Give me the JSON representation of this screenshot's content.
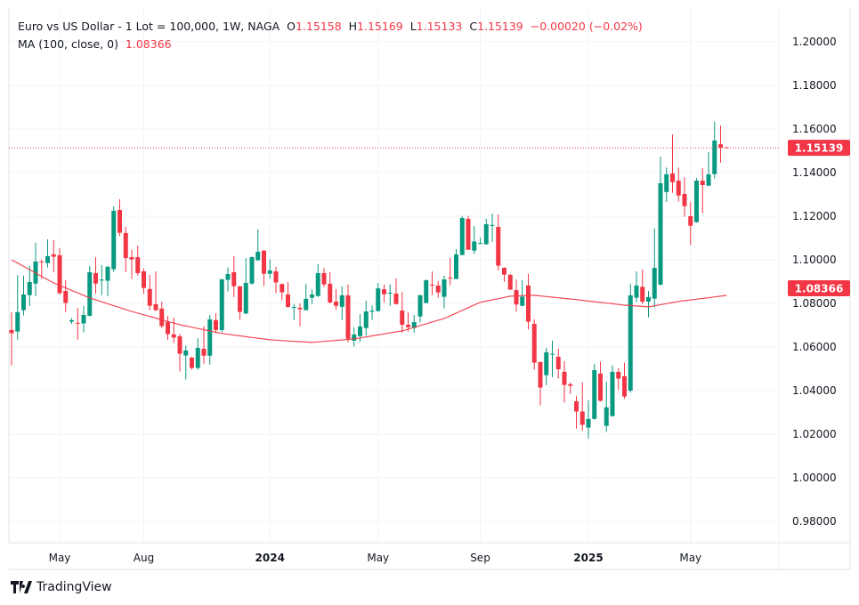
{
  "header": {
    "symbol": "Euro vs US Dollar - 1 Lot = 100,000, 1W, NAGA",
    "o_label": "O",
    "o": "1.15158",
    "h_label": "H",
    "h": "1.15169",
    "l_label": "L",
    "l": "1.15133",
    "c_label": "C",
    "c": "1.15139",
    "change": "−0.00020 (−0.02%)",
    "ma_label": "MA (100, close, 0)",
    "ma_value": "1.08366"
  },
  "branding": {
    "logo_text": "TradingView"
  },
  "colors": {
    "up": "#089981",
    "down": "#f23645",
    "ma": "#f23645",
    "grid": "#f0f3fa",
    "text": "#131722"
  },
  "chart_data": {
    "type": "candlestick",
    "timeframe": "1W",
    "ylim": [
      0.97,
      1.21
    ],
    "y_ticks": [
      "1.20000",
      "1.18000",
      "1.16000",
      "1.14000",
      "1.12000",
      "1.10000",
      "1.08000",
      "1.06000",
      "1.04000",
      "1.02000",
      "1.00000",
      "0.98000"
    ],
    "x_ticks": [
      {
        "label": "May",
        "index": 8,
        "bold": false
      },
      {
        "label": "Aug",
        "index": 22,
        "bold": false
      },
      {
        "label": "2024",
        "index": 43,
        "bold": true
      },
      {
        "label": "May",
        "index": 61,
        "bold": false
      },
      {
        "label": "Sep",
        "index": 78,
        "bold": false
      },
      {
        "label": "2025",
        "index": 96,
        "bold": true
      },
      {
        "label": "May",
        "index": 113,
        "bold": false
      }
    ],
    "grid": true,
    "price_labels": [
      {
        "value": "1.15139",
        "price": 1.15139,
        "color": "#f23645",
        "line": "dotted"
      },
      {
        "value": "1.08366",
        "price": 1.08366,
        "color": "#f23645",
        "line": "none"
      }
    ],
    "ohlc_columns": [
      "open",
      "high",
      "low",
      "close"
    ],
    "candles": [
      [
        1.0678,
        1.076,
        1.0516,
        1.0663
      ],
      [
        1.0671,
        1.093,
        1.0633,
        1.076
      ],
      [
        1.0769,
        1.0927,
        1.0745,
        1.0841
      ],
      [
        1.0838,
        1.0972,
        1.0788,
        1.0898
      ],
      [
        1.0891,
        1.1078,
        1.0834,
        1.0992
      ],
      [
        1.0992,
        1.1002,
        1.0913,
        1.0988
      ],
      [
        1.0985,
        1.1094,
        1.0965,
        1.1017
      ],
      [
        1.1025,
        1.109,
        1.0944,
        1.1014
      ],
      [
        1.1021,
        1.1053,
        1.084,
        1.0847
      ],
      [
        1.0857,
        1.0906,
        1.0761,
        1.0802
      ],
      [
        1.0716,
        1.0732,
        1.0705,
        1.0723
      ],
      [
        1.0711,
        1.078,
        1.0634,
        1.0708
      ],
      [
        1.0708,
        1.0788,
        1.0667,
        1.0747
      ],
      [
        1.0743,
        1.0972,
        1.074,
        1.0943
      ],
      [
        1.0939,
        1.1012,
        1.0845,
        1.0891
      ],
      [
        1.0905,
        1.0976,
        1.0838,
        1.0909
      ],
      [
        1.0904,
        1.0972,
        1.0834,
        1.0968
      ],
      [
        1.0957,
        1.1245,
        1.0944,
        1.1225
      ],
      [
        1.1229,
        1.1278,
        1.1108,
        1.1124
      ],
      [
        1.1123,
        1.1151,
        1.0943,
        1.1008
      ],
      [
        1.1012,
        1.1045,
        1.0912,
        1.1002
      ],
      [
        1.1012,
        1.1066,
        1.0927,
        1.0939
      ],
      [
        1.0947,
        1.0961,
        1.0845,
        1.0871
      ],
      [
        1.0866,
        1.0931,
        1.0769,
        1.0789
      ],
      [
        1.0796,
        1.0947,
        1.0765,
        1.0769
      ],
      [
        1.0776,
        1.0808,
        1.0687,
        1.0696
      ],
      [
        1.0715,
        1.0743,
        1.0633,
        1.0659
      ],
      [
        1.0658,
        1.0735,
        1.0618,
        1.0643
      ],
      [
        1.0649,
        1.066,
        1.0488,
        1.0569
      ],
      [
        1.0561,
        1.0607,
        1.0451,
        1.0584
      ],
      [
        1.0551,
        1.0555,
        1.0496,
        1.0504
      ],
      [
        1.0504,
        1.064,
        1.0496,
        1.0596
      ],
      [
        1.0592,
        1.0696,
        1.0523,
        1.056
      ],
      [
        1.056,
        1.0747,
        1.0519,
        1.0727
      ],
      [
        1.0723,
        1.0755,
        1.0664,
        1.0678
      ],
      [
        1.0678,
        1.0913,
        1.0668,
        1.091
      ],
      [
        1.0908,
        1.0965,
        1.0855,
        1.0935
      ],
      [
        1.0943,
        1.1017,
        1.0829,
        1.0879
      ],
      [
        1.0878,
        1.088,
        1.0724,
        1.0761
      ],
      [
        1.0754,
        1.1008,
        1.075,
        1.0894
      ],
      [
        1.0891,
        1.1015,
        1.0885,
        1.1012
      ],
      [
        1.0998,
        1.1139,
        1.0995,
        1.1037
      ],
      [
        1.1042,
        1.1045,
        1.0879,
        1.0936
      ],
      [
        1.0936,
        1.1002,
        1.0913,
        1.0951
      ],
      [
        1.0947,
        1.0968,
        1.0847,
        1.0896
      ],
      [
        1.0889,
        1.089,
        1.0814,
        1.0851
      ],
      [
        1.0841,
        1.0898,
        1.078,
        1.0784
      ],
      [
        1.0781,
        1.0797,
        1.0724,
        1.0784
      ],
      [
        1.078,
        1.0799,
        1.0695,
        1.0773
      ],
      [
        1.0769,
        1.089,
        1.0769,
        1.0821
      ],
      [
        1.0826,
        1.0864,
        1.0797,
        1.0841
      ],
      [
        1.0834,
        1.098,
        1.083,
        1.0939
      ],
      [
        1.0939,
        1.0963,
        1.0875,
        1.0887
      ],
      [
        1.089,
        1.0943,
        1.08,
        1.0804
      ],
      [
        1.0808,
        1.0865,
        1.077,
        1.0789
      ],
      [
        1.0784,
        1.0878,
        1.0724,
        1.0837
      ],
      [
        1.0837,
        1.0886,
        1.0621,
        1.0638
      ],
      [
        1.0629,
        1.069,
        1.0602,
        1.0657
      ],
      [
        1.065,
        1.0751,
        1.0625,
        1.0694
      ],
      [
        1.0687,
        1.0812,
        1.0652,
        1.0763
      ],
      [
        1.0762,
        1.0791,
        1.0724,
        1.0767
      ],
      [
        1.0765,
        1.0894,
        1.0762,
        1.0869
      ],
      [
        1.0865,
        1.0886,
        1.0804,
        1.0842
      ],
      [
        1.0846,
        1.0888,
        1.0789,
        1.0849
      ],
      [
        1.0845,
        1.0914,
        1.0795,
        1.0797
      ],
      [
        1.0767,
        1.0853,
        1.0665,
        1.0702
      ],
      [
        1.0702,
        1.0759,
        1.0671,
        1.0691
      ],
      [
        1.0687,
        1.0747,
        1.0665,
        1.0714
      ],
      [
        1.074,
        1.0841,
        1.0712,
        1.0837
      ],
      [
        1.0802,
        1.091,
        1.08,
        1.0906
      ],
      [
        1.0886,
        1.0947,
        1.0838,
        1.0883
      ],
      [
        1.0882,
        1.0902,
        1.0826,
        1.085
      ],
      [
        1.083,
        1.0927,
        1.0777,
        1.091
      ],
      [
        1.0918,
        1.1008,
        1.0883,
        1.0916
      ],
      [
        1.0912,
        1.1049,
        1.0911,
        1.1025
      ],
      [
        1.1022,
        1.1201,
        1.1021,
        1.1192
      ],
      [
        1.1188,
        1.1201,
        1.1046,
        1.1046
      ],
      [
        1.1042,
        1.1155,
        1.1026,
        1.1084
      ],
      [
        1.1074,
        1.1101,
        1.1072,
        1.1077
      ],
      [
        1.1071,
        1.1189,
        1.107,
        1.1163
      ],
      [
        1.1157,
        1.1212,
        1.1082,
        1.116
      ],
      [
        1.1151,
        1.1208,
        1.0951,
        1.0973
      ],
      [
        1.0963,
        1.0966,
        1.0899,
        1.0932
      ],
      [
        1.0931,
        1.0935,
        1.0862,
        1.0863
      ],
      [
        1.0861,
        1.0909,
        1.0761,
        1.0795
      ],
      [
        1.0789,
        1.0906,
        1.0787,
        1.0831
      ],
      [
        1.0882,
        1.0935,
        1.068,
        1.0716
      ],
      [
        1.0706,
        1.0727,
        1.0497,
        1.0528
      ],
      [
        1.0531,
        1.0532,
        1.0332,
        1.0414
      ],
      [
        1.0471,
        1.0596,
        1.0425,
        1.0576
      ],
      [
        1.0566,
        1.0629,
        1.0461,
        1.0569
      ],
      [
        1.0555,
        1.0592,
        1.0455,
        1.0498
      ],
      [
        1.0486,
        1.0535,
        1.0345,
        1.0426
      ],
      [
        1.0429,
        1.0437,
        1.0384,
        1.0422
      ],
      [
        1.0351,
        1.0376,
        1.0226,
        1.0304
      ],
      [
        1.0304,
        1.0437,
        1.0215,
        1.0243
      ],
      [
        1.023,
        1.0355,
        1.0179,
        1.027
      ],
      [
        1.027,
        1.0523,
        1.0267,
        1.0494
      ],
      [
        1.0478,
        1.0532,
        1.035,
        1.0353
      ],
      [
        1.0238,
        1.0441,
        1.0211,
        1.0323
      ],
      [
        1.0283,
        1.0515,
        1.028,
        1.0486
      ],
      [
        1.0486,
        1.0504,
        1.0403,
        1.0455
      ],
      [
        1.0466,
        1.0528,
        1.0362,
        1.0373
      ],
      [
        1.04,
        1.089,
        1.0391,
        1.0837
      ],
      [
        1.0826,
        1.0947,
        1.0806,
        1.0882
      ],
      [
        1.0876,
        1.0955,
        1.0797,
        1.0808
      ],
      [
        1.0808,
        1.0857,
        1.0736,
        1.0829
      ],
      [
        1.0822,
        1.1144,
        1.0781,
        1.0963
      ],
      [
        1.0886,
        1.1473,
        1.0882,
        1.1351
      ],
      [
        1.1311,
        1.1423,
        1.1265,
        1.1392
      ],
      [
        1.1396,
        1.1575,
        1.1307,
        1.1356
      ],
      [
        1.1363,
        1.1423,
        1.1267,
        1.1295
      ],
      [
        1.1302,
        1.1379,
        1.1197,
        1.1246
      ],
      [
        1.12,
        1.1265,
        1.1067,
        1.1156
      ],
      [
        1.1173,
        1.1375,
        1.117,
        1.1363
      ],
      [
        1.1363,
        1.142,
        1.1214,
        1.1343
      ],
      [
        1.134,
        1.1494,
        1.1338,
        1.1392
      ],
      [
        1.1393,
        1.1634,
        1.1373,
        1.1547
      ],
      [
        1.153,
        1.1616,
        1.1446,
        1.1515
      ],
      [
        1.15158,
        1.15169,
        1.15133,
        1.15139
      ]
    ],
    "ma": {
      "name": "MA (100, close, 0)",
      "points": [
        [
          0,
          1.1
        ],
        [
          7,
          1.0894
        ],
        [
          13,
          1.0825
        ],
        [
          20,
          1.0763
        ],
        [
          28,
          1.0702
        ],
        [
          35,
          1.0662
        ],
        [
          43,
          1.0633
        ],
        [
          50,
          1.0621
        ],
        [
          57,
          1.0637
        ],
        [
          65,
          1.0674
        ],
        [
          72,
          1.0731
        ],
        [
          78,
          1.0805
        ],
        [
          83,
          1.0833
        ],
        [
          87,
          1.0837
        ],
        [
          94,
          1.0817
        ],
        [
          102,
          1.0792
        ],
        [
          106,
          1.0784
        ],
        [
          111,
          1.0809
        ],
        [
          119,
          1.08366
        ]
      ]
    }
  }
}
